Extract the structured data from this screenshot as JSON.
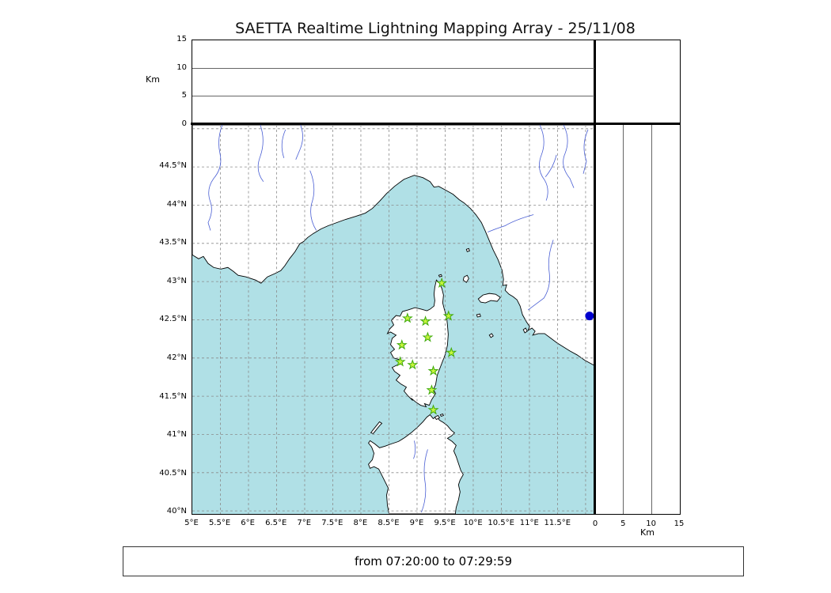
{
  "title": "SAETTA Realtime Lightning Mapping Array - 25/11/08",
  "footer": {
    "time_range": "from 07:20:00 to 07:29:59"
  },
  "altitude_axis": {
    "unit": "Km",
    "ticks": [
      0,
      5,
      10,
      15
    ],
    "max": 15
  },
  "right_axis": {
    "unit": "Km",
    "ticks": [
      0,
      5,
      10,
      15
    ],
    "max": 15
  },
  "map": {
    "extent": {
      "lon_min": 5.0,
      "lon_max": 12.17,
      "lat_min": 39.96,
      "lat_max": 45.05
    },
    "grid_step_deg": 0.5,
    "lat_ticks": [
      {
        "label": "44.5°N",
        "value": 44.5
      },
      {
        "label": "44°N",
        "value": 44.0
      },
      {
        "label": "43.5°N",
        "value": 43.5
      },
      {
        "label": "43°N",
        "value": 43.0
      },
      {
        "label": "42.5°N",
        "value": 42.5
      },
      {
        "label": "42°N",
        "value": 42.0
      },
      {
        "label": "41.5°N",
        "value": 41.5
      },
      {
        "label": "41°N",
        "value": 41.0
      },
      {
        "label": "40.5°N",
        "value": 40.5
      },
      {
        "label": "40°N",
        "value": 40.0
      }
    ],
    "lon_ticks": [
      {
        "label": "5°E",
        "value": 5.0
      },
      {
        "label": "5.5°E",
        "value": 5.5
      },
      {
        "label": "6°E",
        "value": 6.0
      },
      {
        "label": "6.5°E",
        "value": 6.5
      },
      {
        "label": "7°E",
        "value": 7.0
      },
      {
        "label": "7.5°E",
        "value": 7.5
      },
      {
        "label": "8°E",
        "value": 8.0
      },
      {
        "label": "8.5°E",
        "value": 8.5
      },
      {
        "label": "9°E",
        "value": 9.0
      },
      {
        "label": "9.5°E",
        "value": 9.5
      },
      {
        "label": "10°E",
        "value": 10.0
      },
      {
        "label": "10.5°E",
        "value": 10.5
      },
      {
        "label": "11°E",
        "value": 11.0
      },
      {
        "label": "11.5°E",
        "value": 11.5
      }
    ]
  },
  "stations": [
    {
      "lon": 9.44,
      "lat": 42.98
    },
    {
      "lon": 8.83,
      "lat": 42.52
    },
    {
      "lon": 9.15,
      "lat": 42.48
    },
    {
      "lon": 9.56,
      "lat": 42.55
    },
    {
      "lon": 9.19,
      "lat": 42.27
    },
    {
      "lon": 8.73,
      "lat": 42.17
    },
    {
      "lon": 9.61,
      "lat": 42.07
    },
    {
      "lon": 8.7,
      "lat": 41.95
    },
    {
      "lon": 8.92,
      "lat": 41.91
    },
    {
      "lon": 9.29,
      "lat": 41.83
    },
    {
      "lon": 9.26,
      "lat": 41.58
    },
    {
      "lon": 9.29,
      "lat": 41.32
    }
  ],
  "events": [
    {
      "lon": 12.07,
      "lat": 42.55
    }
  ],
  "colors": {
    "sea": "#b0e0e6",
    "land": "#ffffff",
    "coast": "#000000",
    "river": "#4a5fd4",
    "grid": "#8a8a8a",
    "station_fill": "#c6f53d",
    "station_edge": "#3faa0a",
    "event_fill": "#0000cd"
  }
}
